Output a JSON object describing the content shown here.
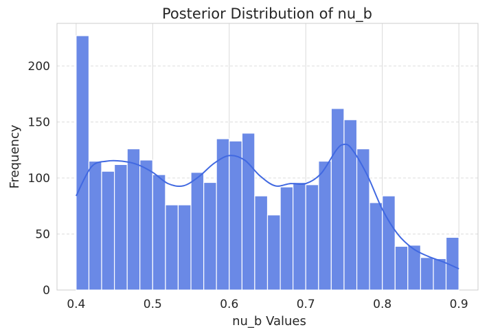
{
  "chart_data": {
    "type": "histogram",
    "title": "Posterior Distribution of nu_b",
    "xlabel": "nu_b Values",
    "ylabel": "Frequency",
    "xlim": [
      0.375,
      0.925
    ],
    "ylim": [
      0,
      238
    ],
    "xticks": [
      0.4,
      0.5,
      0.6,
      0.7,
      0.8,
      0.9
    ],
    "xtick_labels": [
      "0.4",
      "0.5",
      "0.6",
      "0.7",
      "0.8",
      "0.9"
    ],
    "yticks": [
      0,
      50,
      100,
      150,
      200
    ],
    "ytick_labels": [
      "0",
      "50",
      "100",
      "150",
      "200"
    ],
    "grid": true,
    "bar_color": "#6a89e6",
    "kde_color": "#4169e1",
    "bin_edges": [
      0.4,
      0.4167,
      0.4333,
      0.45,
      0.4667,
      0.4833,
      0.5,
      0.5167,
      0.5333,
      0.55,
      0.5667,
      0.5833,
      0.6,
      0.6167,
      0.6333,
      0.65,
      0.6667,
      0.6833,
      0.7,
      0.7167,
      0.7333,
      0.75,
      0.7667,
      0.7833,
      0.8,
      0.8167,
      0.8333,
      0.85,
      0.8667,
      0.8833,
      0.9
    ],
    "counts": [
      227,
      115,
      106,
      112,
      126,
      116,
      103,
      76,
      76,
      105,
      96,
      135,
      133,
      140,
      84,
      67,
      92,
      96,
      94,
      115,
      162,
      152,
      126,
      78,
      84,
      39,
      40,
      29,
      28,
      47
    ],
    "kde": {
      "x": [
        0.4,
        0.42,
        0.44,
        0.46,
        0.48,
        0.5,
        0.52,
        0.54,
        0.56,
        0.58,
        0.6,
        0.62,
        0.64,
        0.66,
        0.68,
        0.7,
        0.72,
        0.74,
        0.75,
        0.76,
        0.78,
        0.8,
        0.82,
        0.84,
        0.86,
        0.88,
        0.9
      ],
      "y": [
        84,
        110,
        115,
        115,
        112,
        105,
        95,
        93,
        101,
        113,
        120,
        116,
        102,
        93,
        95,
        95,
        104,
        125,
        130,
        126,
        103,
        72,
        50,
        37,
        30,
        25,
        19
      ]
    }
  }
}
